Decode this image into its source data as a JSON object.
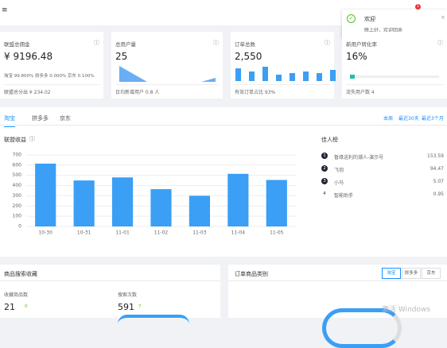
{
  "notification": {
    "title": "欢迎",
    "message": "晚上好，欢迎回来",
    "badge": "1"
  },
  "cards": [
    {
      "title": "联盟总佣金",
      "value": "¥ 9196.48",
      "detail": "淘宝 99.800%   拼多多 0.000%   京东 0.100%",
      "footer": "联盟总分出 ¥ 234.02"
    },
    {
      "title": "总用户量",
      "value": "25",
      "footer": "日均新增用户 0.8 人"
    },
    {
      "title": "订单总数",
      "value": "2,550",
      "footer": "有效订单占比 93%"
    },
    {
      "title": "新用户转化率",
      "value": "16%",
      "footer": "流失用户数 4"
    }
  ],
  "tabs": [
    "淘宝",
    "拼多多",
    "京东"
  ],
  "ranges": [
    "本周",
    "最近30天",
    "最近3个月"
  ],
  "chart_data": {
    "type": "bar",
    "title": "联盟收益",
    "categories": [
      "10-30",
      "10-31",
      "11-01",
      "11-02",
      "11-03",
      "11-04",
      "11-05"
    ],
    "values": [
      615,
      450,
      480,
      365,
      300,
      515,
      455
    ],
    "color": "#3a9ff5",
    "ylim": [
      0,
      700
    ],
    "yticks": [
      0,
      100,
      200,
      300,
      400,
      500,
      600,
      700
    ],
    "grid": true
  },
  "ranking": {
    "title": "佳人榜",
    "rows": [
      [
        "1",
        "暂缘送利的潮人-演示号",
        153.59
      ],
      [
        "2",
        "飞羽",
        94.47
      ],
      [
        "3",
        "小马",
        5.07
      ],
      [
        "4",
        "智能助手",
        0.95
      ]
    ]
  },
  "search_panel": {
    "title": "商品搜索收藏",
    "items": [
      {
        "label": "收藏商品数",
        "value": 21,
        "change": 0
      },
      {
        "label": "搜索次数",
        "value": 591,
        "change": 7
      }
    ]
  },
  "order_panel": {
    "title": "订单商品类别",
    "buttons": [
      "淘宝",
      "拼多多",
      "京东"
    ]
  },
  "watermark": "激活 Windows"
}
